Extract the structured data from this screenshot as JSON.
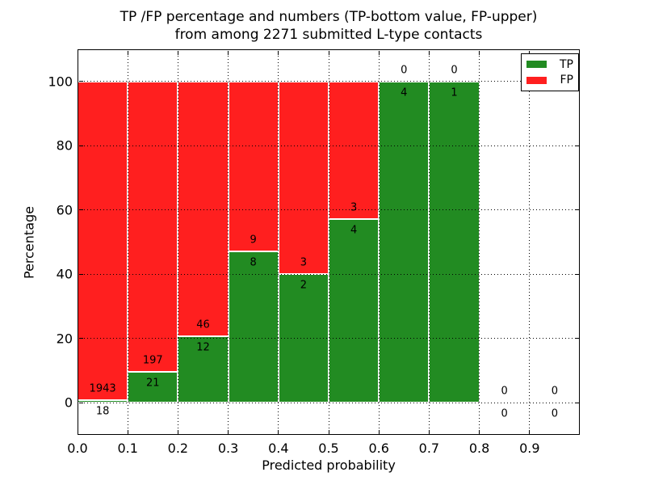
{
  "chart_data": {
    "type": "bar",
    "stacked": true,
    "title_line1": "TP /FP percentage and numbers (TP-bottom value, FP-upper)",
    "title_line2": "from among 2271 submitted L-type contacts",
    "xlabel": "Predicted probability",
    "ylabel": "Percentage",
    "xlim": [
      0,
      1.0
    ],
    "ylim": [
      -10,
      110
    ],
    "x_ticks": [
      0.0,
      0.1,
      0.2,
      0.3,
      0.4,
      0.5,
      0.6,
      0.7,
      0.8,
      0.9
    ],
    "x_tick_labels": [
      "0.0",
      "0.1",
      "0.2",
      "0.3",
      "0.4",
      "0.5",
      "0.6",
      "0.7",
      "0.8",
      "0.9"
    ],
    "y_ticks": [
      0,
      20,
      40,
      60,
      80,
      100
    ],
    "y_tick_labels": [
      "0",
      "20",
      "40",
      "60",
      "80",
      "100"
    ],
    "grid": "dotted",
    "colors": {
      "tp": "#228b22",
      "fp": "#ff1f1f",
      "text": "#000000",
      "bar_edge": "#ffffff"
    },
    "legend": {
      "position": "upper-right",
      "entries": [
        {
          "label": "TP",
          "color": "#228b22"
        },
        {
          "label": "FP",
          "color": "#ff1f1f"
        }
      ]
    },
    "series": [
      {
        "name": "TP",
        "values": [
          18,
          21,
          12,
          8,
          2,
          4,
          4,
          1,
          0,
          0
        ]
      },
      {
        "name": "FP",
        "values": [
          1943,
          197,
          46,
          9,
          3,
          3,
          0,
          0,
          0,
          0
        ]
      }
    ],
    "bins": [
      {
        "x_start": 0.0,
        "x_end": 0.1,
        "tp": 18,
        "fp": 1943,
        "tp_pct": 0.92,
        "fp_pct": 99.08
      },
      {
        "x_start": 0.1,
        "x_end": 0.2,
        "tp": 21,
        "fp": 197,
        "tp_pct": 9.63,
        "fp_pct": 90.37
      },
      {
        "x_start": 0.2,
        "x_end": 0.3,
        "tp": 12,
        "fp": 46,
        "tp_pct": 20.69,
        "fp_pct": 79.31
      },
      {
        "x_start": 0.3,
        "x_end": 0.4,
        "tp": 8,
        "fp": 9,
        "tp_pct": 47.06,
        "fp_pct": 52.94
      },
      {
        "x_start": 0.4,
        "x_end": 0.5,
        "tp": 2,
        "fp": 3,
        "tp_pct": 40.0,
        "fp_pct": 60.0
      },
      {
        "x_start": 0.5,
        "x_end": 0.6,
        "tp": 4,
        "fp": 3,
        "tp_pct": 57.14,
        "fp_pct": 42.86
      },
      {
        "x_start": 0.6,
        "x_end": 0.7,
        "tp": 4,
        "fp": 0,
        "tp_pct": 100.0,
        "fp_pct": 0.0
      },
      {
        "x_start": 0.7,
        "x_end": 0.8,
        "tp": 1,
        "fp": 0,
        "tp_pct": 100.0,
        "fp_pct": 0.0
      },
      {
        "x_start": 0.8,
        "x_end": 0.9,
        "tp": 0,
        "fp": 0,
        "tp_pct": 0.0,
        "fp_pct": 0.0
      },
      {
        "x_start": 0.9,
        "x_end": 1.0,
        "tp": 0,
        "fp": 0,
        "tp_pct": 0.0,
        "fp_pct": 0.0
      }
    ]
  }
}
